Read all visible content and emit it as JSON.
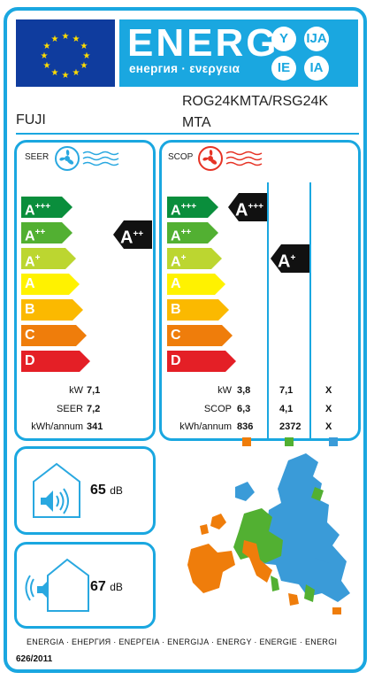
{
  "header": {
    "energy_word": "ENERG",
    "energy_subtitle": "енергия · ενεργεια",
    "languages": [
      "Y",
      "IJA",
      "IE",
      "IA"
    ]
  },
  "product": {
    "model_line1": "ROG24KMTA/RSG24K",
    "model_line2": "MTA",
    "brand": "FUJI"
  },
  "classes": [
    "A+++",
    "A++",
    "A+",
    "A",
    "B",
    "C",
    "D"
  ],
  "class_colors": [
    "#0a8e3c",
    "#52b032",
    "#bcd630",
    "#fff200",
    "#fbb900",
    "#ef7d0b",
    "#e41f26"
  ],
  "cooling": {
    "title": "SEER",
    "rating_base": "A",
    "rating_sup": "++",
    "rows": [
      {
        "label": "kW",
        "value": "7,1"
      },
      {
        "label": "SEER",
        "value": "7,2"
      },
      {
        "label": "kWh/annum",
        "value": "341"
      }
    ]
  },
  "heating": {
    "title": "SCOP",
    "ratings": [
      {
        "base": "A",
        "sup": "+++",
        "zone": "warmer"
      },
      {
        "base": "A",
        "sup": "+",
        "zone": "average"
      }
    ],
    "rows": [
      {
        "label": "kW",
        "values": [
          "3,8",
          "7,1",
          "X"
        ]
      },
      {
        "label": "SCOP",
        "values": [
          "6,3",
          "4,1",
          "X"
        ]
      },
      {
        "label": "kWh/annum",
        "values": [
          "836",
          "2372",
          "X"
        ]
      }
    ],
    "zone_colors": [
      "#ef7d0b",
      "#52b032",
      "#3a9bd8"
    ]
  },
  "noise": {
    "indoor_value": "65",
    "outdoor_value": "67",
    "unit": "dB"
  },
  "footer": {
    "languages_line": "ENERGIA · ЕНЕРГИЯ · ΕΝΕΡΓΕΙΑ · ENERGIJA · ENERGY · ENERGIE · ENERGI",
    "regulation": "626/2011"
  }
}
